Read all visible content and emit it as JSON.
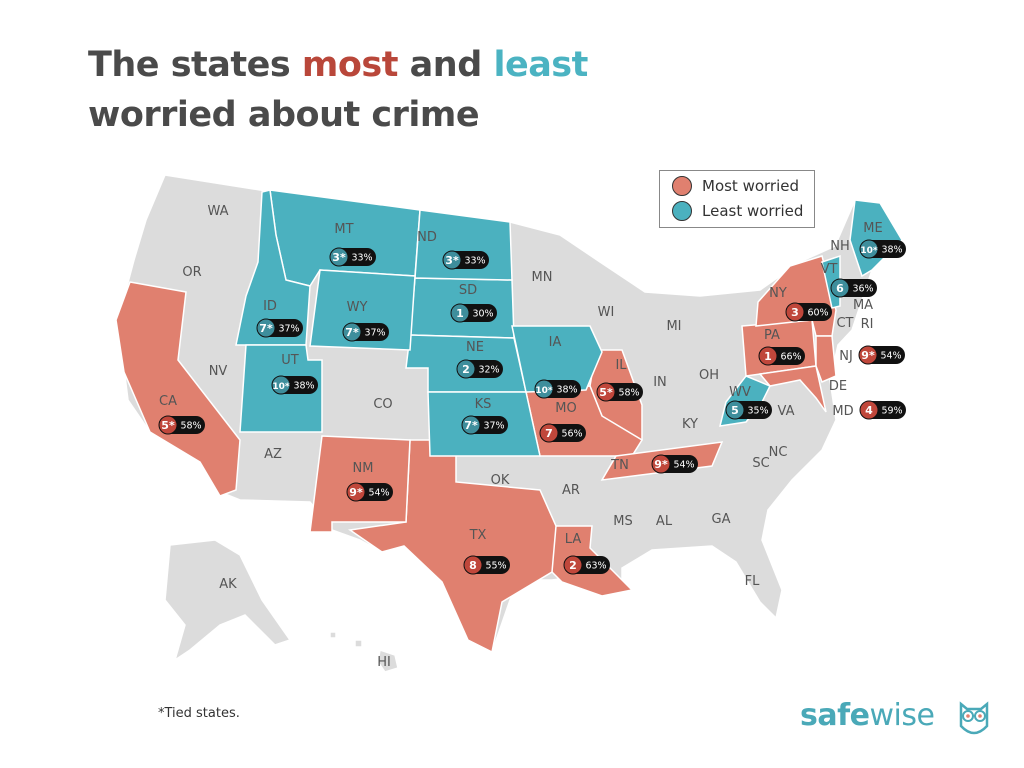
{
  "title": {
    "part1": "The states ",
    "most": "most",
    "part2": " and ",
    "least": "least",
    "line2": "worried about crime"
  },
  "legend": {
    "most_label": "Most worried",
    "least_label": "Least worried"
  },
  "colors": {
    "most_fill": "#e0806f",
    "least_fill": "#4bb1bf",
    "neutral_fill": "#dcdcdc",
    "most_badge": "#c0473b",
    "least_badge": "#3e8e9c",
    "title_most": "#b9473a",
    "title_least": "#4bb3c2"
  },
  "footnote": "*Tied states.",
  "logo": {
    "safe": "safe",
    "wise": "wise"
  },
  "ranked_states": [
    {
      "abbr": "PA",
      "group": "most",
      "rank": "1",
      "pct": "66%"
    },
    {
      "abbr": "LA",
      "group": "most",
      "rank": "2",
      "pct": "63%"
    },
    {
      "abbr": "NY",
      "group": "most",
      "rank": "3",
      "pct": "60%"
    },
    {
      "abbr": "MD",
      "group": "most",
      "rank": "4",
      "pct": "59%"
    },
    {
      "abbr": "CA",
      "group": "most",
      "rank": "5*",
      "pct": "58%"
    },
    {
      "abbr": "IL",
      "group": "most",
      "rank": "5*",
      "pct": "58%"
    },
    {
      "abbr": "MO",
      "group": "most",
      "rank": "7",
      "pct": "56%"
    },
    {
      "abbr": "TX",
      "group": "most",
      "rank": "8",
      "pct": "55%"
    },
    {
      "abbr": "NM",
      "group": "most",
      "rank": "9*",
      "pct": "54%"
    },
    {
      "abbr": "NJ",
      "group": "most",
      "rank": "9*",
      "pct": "54%"
    },
    {
      "abbr": "TN",
      "group": "most",
      "rank": "9*",
      "pct": "54%"
    },
    {
      "abbr": "SD",
      "group": "least",
      "rank": "1",
      "pct": "30%"
    },
    {
      "abbr": "NE",
      "group": "least",
      "rank": "2",
      "pct": "32%"
    },
    {
      "abbr": "MT",
      "group": "least",
      "rank": "3*",
      "pct": "33%"
    },
    {
      "abbr": "ND",
      "group": "least",
      "rank": "3*",
      "pct": "33%"
    },
    {
      "abbr": "WV",
      "group": "least",
      "rank": "5",
      "pct": "35%"
    },
    {
      "abbr": "VT",
      "group": "least",
      "rank": "6",
      "pct": "36%"
    },
    {
      "abbr": "ID",
      "group": "least",
      "rank": "7*",
      "pct": "37%"
    },
    {
      "abbr": "WY",
      "group": "least",
      "rank": "7*",
      "pct": "37%"
    },
    {
      "abbr": "KS",
      "group": "least",
      "rank": "7*",
      "pct": "37%"
    },
    {
      "abbr": "UT",
      "group": "least",
      "rank": "10*",
      "pct": "38%"
    },
    {
      "abbr": "IA",
      "group": "least",
      "rank": "10*",
      "pct": "38%"
    },
    {
      "abbr": "ME",
      "group": "least",
      "rank": "10*",
      "pct": "38%"
    }
  ],
  "state_labels": [
    "WA",
    "OR",
    "CA",
    "NV",
    "ID",
    "MT",
    "WY",
    "UT",
    "AZ",
    "CO",
    "NM",
    "ND",
    "SD",
    "NE",
    "KS",
    "OK",
    "TX",
    "MN",
    "IA",
    "MO",
    "AR",
    "LA",
    "WI",
    "IL",
    "MI",
    "IN",
    "OH",
    "KY",
    "TN",
    "MS",
    "AL",
    "GA",
    "FL",
    "SC",
    "NC",
    "VA",
    "WV",
    "PA",
    "NY",
    "VT",
    "NH",
    "ME",
    "MA",
    "CT",
    "RI",
    "NJ",
    "DE",
    "MD",
    "AK",
    "HI"
  ]
}
